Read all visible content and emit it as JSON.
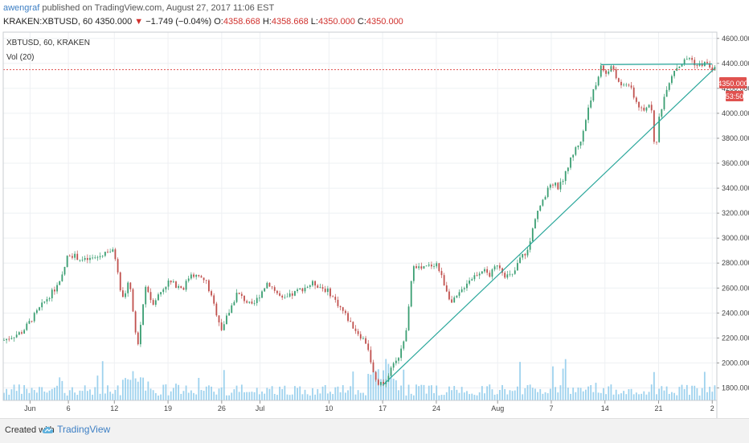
{
  "header": {
    "author": "awengraf",
    "published_text": "published on TradingView.com, August 27, 2017 11:06 EST",
    "symbol_line": "KRAKEN:XBTUSD, 60",
    "last_price": "4350.000",
    "change_arrow": "▼",
    "change": "−1.749 (−0.04%)",
    "o_label": "O:",
    "o_value": "4358.668",
    "h_label": "H:",
    "h_value": "4358.668",
    "l_label": "L:",
    "l_value": "4350.000",
    "c_label": "C:",
    "c_value": "4350.000"
  },
  "chart_legend": {
    "symbol": "XBTUSD, 60, KRAKEN",
    "indicator": "Vol (20)"
  },
  "price_badge": "4350.000",
  "countdown_badge": "53:50",
  "footer": {
    "created_with": "Created with",
    "brand": "TradingView"
  },
  "colors": {
    "up": "#3a9e72",
    "down": "#c0504d",
    "volume": "#7ec3e8",
    "trendline": "#2aa79b",
    "price_line": "#e0524f",
    "grid": "#eef0f3"
  },
  "chart_data": {
    "type": "candlestick",
    "title": "XBTUSD, 60, KRAKEN",
    "indicator": "Vol (20)",
    "ylim": [
      1700,
      4650
    ],
    "y_ticks": [
      1800,
      2000,
      2200,
      2400,
      2600,
      2800,
      3000,
      3200,
      3400,
      3600,
      3800,
      4000,
      4200,
      4400,
      4600
    ],
    "y_tick_labels": [
      "1800.000",
      "2000.000",
      "2200.000",
      "2400.000",
      "2600.000",
      "2800.000",
      "3000.000",
      "3200.000",
      "3400.000",
      "3600.000",
      "3800.000",
      "4000.000",
      "4200.000",
      "4400.000",
      "4600.000"
    ],
    "x_ticks": [
      "Jun",
      "6",
      "12",
      "19",
      "26",
      "Jul",
      "10",
      "17",
      "24",
      "Aug",
      "7",
      "14",
      "21",
      "2"
    ],
    "x_tick_days": [
      1,
      6,
      12,
      19,
      26,
      31,
      40,
      47,
      54,
      62,
      69,
      76,
      83,
      90
    ],
    "x_range_days": [
      -2.5,
      90.6
    ],
    "last_price": 4350,
    "price_path_days": [
      -2.5,
      0,
      3,
      5,
      6,
      8,
      10,
      11,
      12,
      13,
      14,
      15,
      16,
      17,
      19,
      21,
      22,
      24,
      26,
      28,
      30,
      32,
      34,
      36,
      38,
      40,
      42,
      43,
      45,
      46,
      47,
      49,
      50,
      51,
      52,
      54,
      56,
      57,
      58,
      60,
      61,
      62,
      63,
      64,
      65,
      66,
      67,
      68,
      69,
      70,
      71,
      72,
      73,
      74,
      75,
      75.6,
      76,
      77,
      78,
      79,
      80,
      81,
      82,
      82.6,
      83,
      84,
      85,
      86,
      87,
      88,
      89,
      90.3
    ],
    "price_path_values": [
      2180,
      2250,
      2500,
      2650,
      2880,
      2820,
      2850,
      2900,
      2890,
      2500,
      2660,
      2100,
      2600,
      2480,
      2650,
      2600,
      2720,
      2650,
      2270,
      2560,
      2450,
      2650,
      2500,
      2580,
      2640,
      2570,
      2400,
      2300,
      2150,
      1850,
      1820,
      2050,
      2200,
      2800,
      2750,
      2800,
      2480,
      2550,
      2650,
      2750,
      2700,
      2800,
      2700,
      2700,
      2850,
      2900,
      3200,
      3300,
      3450,
      3400,
      3550,
      3700,
      3800,
      4100,
      4250,
      4420,
      4300,
      4380,
      4200,
      4250,
      4100,
      4000,
      4100,
      3650,
      3950,
      4200,
      4350,
      4400,
      4450,
      4380,
      4400,
      4350
    ],
    "trendlines": [
      {
        "from": [
          47,
          1820
        ],
        "to": [
          90.3,
          4360
        ],
        "label": ""
      },
      {
        "from": [
          75.5,
          4390
        ],
        "to": [
          90,
          4395
        ],
        "label": ""
      }
    ],
    "price_line": 4350
  }
}
